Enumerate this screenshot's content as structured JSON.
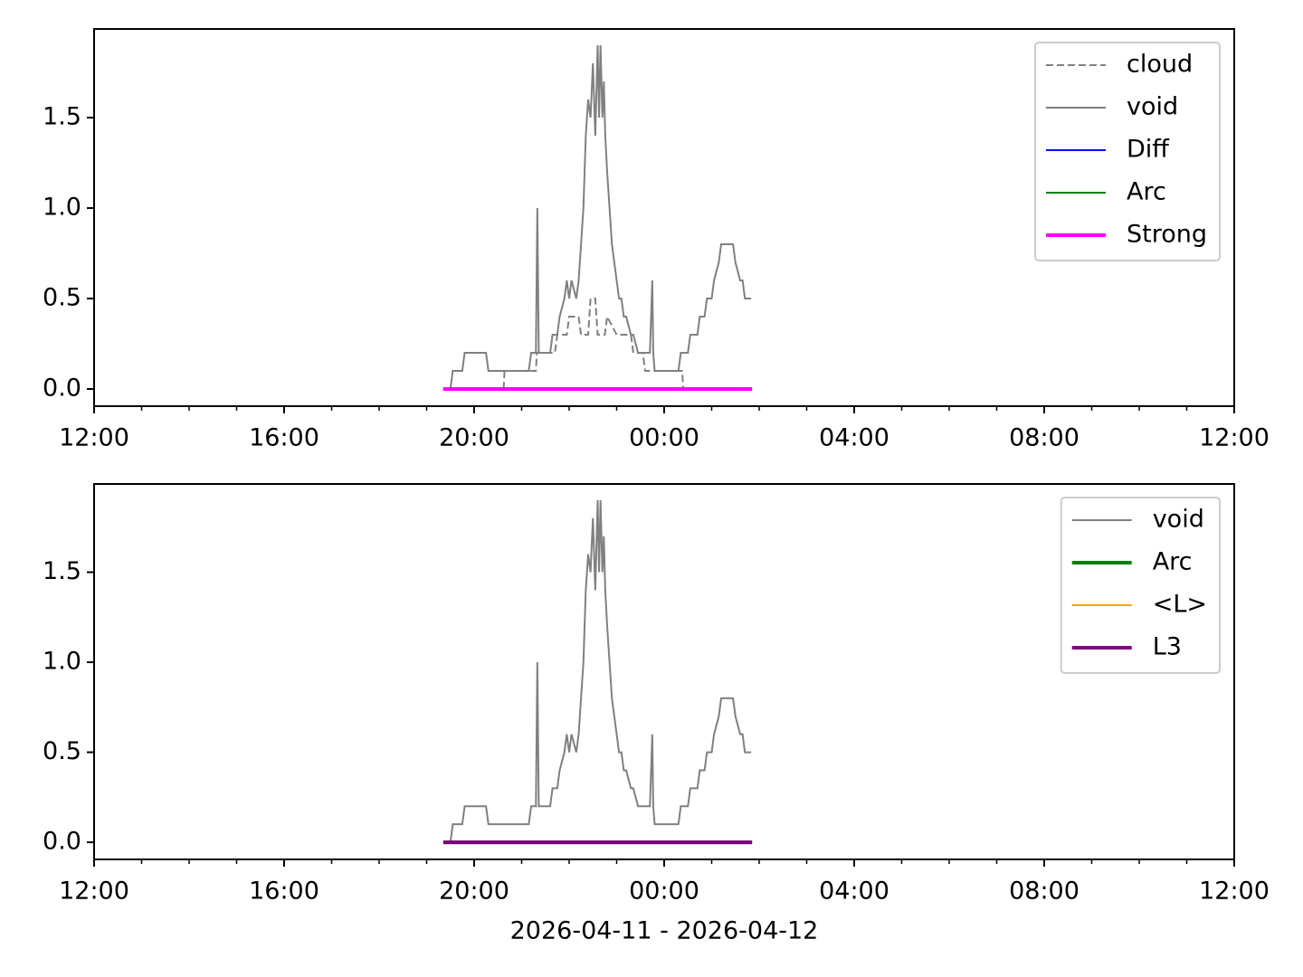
{
  "chart_data": [
    {
      "type": "line",
      "xlim": [
        0,
        24
      ],
      "ylim": [
        -0.095,
        1.99
      ],
      "xticks": [
        {
          "value": 0,
          "label": "12:00"
        },
        {
          "value": 4,
          "label": "16:00"
        },
        {
          "value": 8,
          "label": "20:00"
        },
        {
          "value": 12,
          "label": "00:00"
        },
        {
          "value": 16,
          "label": "04:00"
        },
        {
          "value": 20,
          "label": "08:00"
        },
        {
          "value": 24,
          "label": "12:00"
        }
      ],
      "xminor": [
        1,
        2,
        3,
        5,
        6,
        7,
        9,
        10,
        11,
        13,
        14,
        15,
        17,
        18,
        19,
        21,
        22,
        23
      ],
      "yticks": [
        {
          "value": 0,
          "label": "0.0"
        },
        0.5,
        {
          "value": 1,
          "label": "1.0"
        },
        1.5
      ],
      "legend": "upper right",
      "series": [
        {
          "name": "cloud",
          "color": "#808080",
          "dash": true,
          "width": 2,
          "x": [
            8.62,
            8.64,
            9.3,
            9.32,
            9.7,
            9.75,
            9.95,
            10.0,
            10.2,
            10.25,
            10.4,
            10.45,
            10.55,
            10.6,
            10.75,
            10.8,
            11.0,
            11.05,
            11.3,
            11.35,
            11.55,
            11.6,
            12.38,
            12.4
          ],
          "values": [
            0,
            0.1,
            0.1,
            0.2,
            0.2,
            0.3,
            0.3,
            0.4,
            0.4,
            0.3,
            0.3,
            0.5,
            0.5,
            0.3,
            0.3,
            0.4,
            0.3,
            0.3,
            0.3,
            0.2,
            0.2,
            0.1,
            0.1,
            0
          ]
        },
        {
          "name": "void",
          "color": "#808080",
          "width": 2,
          "x": [
            7.35,
            7.5,
            7.55,
            7.75,
            7.8,
            8.25,
            8.3,
            9.15,
            9.2,
            9.3,
            9.33,
            9.36,
            9.6,
            9.65,
            9.75,
            9.8,
            9.9,
            9.95,
            10.0,
            10.05,
            10.15,
            10.2,
            10.3,
            10.35,
            10.4,
            10.45,
            10.5,
            10.55,
            10.6,
            10.63,
            10.66,
            10.7,
            10.73,
            10.76,
            10.8,
            10.85,
            10.9,
            10.95,
            11.0,
            11.05,
            11.1,
            11.15,
            11.2,
            11.3,
            11.35,
            11.45,
            11.5,
            11.7,
            11.75,
            11.77,
            11.8,
            11.85,
            12.3,
            12.35,
            12.5,
            12.55,
            12.7,
            12.75,
            12.85,
            12.9,
            13.0,
            13.05,
            13.15,
            13.2,
            13.45,
            13.5,
            13.6,
            13.65,
            13.7,
            13.75,
            13.83
          ],
          "values": [
            0,
            0,
            0.1,
            0.1,
            0.2,
            0.2,
            0.1,
            0.1,
            0.2,
            0.2,
            1.0,
            0.2,
            0.2,
            0.3,
            0.3,
            0.4,
            0.5,
            0.6,
            0.5,
            0.6,
            0.5,
            0.6,
            1.0,
            1.4,
            1.6,
            1.5,
            1.8,
            1.4,
            1.9,
            1.5,
            1.9,
            1.5,
            1.7,
            1.4,
            1.2,
            1.0,
            0.8,
            0.7,
            0.6,
            0.5,
            0.5,
            0.4,
            0.4,
            0.3,
            0.3,
            0.2,
            0.2,
            0.2,
            0.6,
            0.2,
            0.1,
            0.1,
            0.1,
            0.2,
            0.2,
            0.3,
            0.3,
            0.4,
            0.4,
            0.5,
            0.5,
            0.6,
            0.7,
            0.8,
            0.8,
            0.7,
            0.6,
            0.6,
            0.5,
            0.5,
            0.5
          ]
        },
        {
          "name": "Diff",
          "color": "#0000ff",
          "width": 2,
          "x": [
            7.35,
            13.85
          ],
          "values": [
            0,
            0
          ]
        },
        {
          "name": "Arc",
          "color": "#008000",
          "width": 2,
          "x": [
            7.35,
            13.85
          ],
          "values": [
            0,
            0
          ]
        },
        {
          "name": "Strong",
          "color": "#ff00ff",
          "width": 4,
          "x": [
            7.35,
            13.85
          ],
          "values": [
            0,
            0
          ]
        }
      ]
    },
    {
      "type": "line",
      "xlim": [
        0,
        24
      ],
      "ylim": [
        -0.095,
        1.99
      ],
      "xlabel": "2026-04-11 - 2026-04-12",
      "xticks": [
        {
          "value": 0,
          "label": "12:00"
        },
        {
          "value": 4,
          "label": "16:00"
        },
        {
          "value": 8,
          "label": "20:00"
        },
        {
          "value": 12,
          "label": "00:00"
        },
        {
          "value": 16,
          "label": "04:00"
        },
        {
          "value": 20,
          "label": "08:00"
        },
        {
          "value": 24,
          "label": "12:00"
        }
      ],
      "xminor": [
        1,
        2,
        3,
        5,
        6,
        7,
        9,
        10,
        11,
        13,
        14,
        15,
        17,
        18,
        19,
        21,
        22,
        23
      ],
      "yticks": [
        {
          "value": 0,
          "label": "0.0"
        },
        0.5,
        {
          "value": 1,
          "label": "1.0"
        },
        1.5
      ],
      "legend": "upper right",
      "series": [
        {
          "name": "void",
          "color": "#808080",
          "width": 2,
          "x": [
            7.35,
            7.5,
            7.55,
            7.75,
            7.8,
            8.25,
            8.3,
            9.15,
            9.2,
            9.3,
            9.33,
            9.36,
            9.6,
            9.65,
            9.75,
            9.8,
            9.9,
            9.95,
            10.0,
            10.05,
            10.15,
            10.2,
            10.3,
            10.35,
            10.4,
            10.45,
            10.5,
            10.55,
            10.6,
            10.63,
            10.66,
            10.7,
            10.73,
            10.76,
            10.8,
            10.85,
            10.9,
            10.95,
            11.0,
            11.05,
            11.1,
            11.15,
            11.2,
            11.3,
            11.35,
            11.45,
            11.5,
            11.7,
            11.75,
            11.77,
            11.8,
            11.85,
            12.3,
            12.35,
            12.5,
            12.55,
            12.7,
            12.75,
            12.85,
            12.9,
            13.0,
            13.05,
            13.15,
            13.2,
            13.45,
            13.5,
            13.6,
            13.65,
            13.7,
            13.75,
            13.83
          ],
          "values": [
            0,
            0,
            0.1,
            0.1,
            0.2,
            0.2,
            0.1,
            0.1,
            0.2,
            0.2,
            1.0,
            0.2,
            0.2,
            0.3,
            0.3,
            0.4,
            0.5,
            0.6,
            0.5,
            0.6,
            0.5,
            0.6,
            1.0,
            1.4,
            1.6,
            1.5,
            1.8,
            1.4,
            1.9,
            1.5,
            1.9,
            1.5,
            1.7,
            1.4,
            1.2,
            1.0,
            0.8,
            0.7,
            0.6,
            0.5,
            0.5,
            0.4,
            0.4,
            0.3,
            0.3,
            0.2,
            0.2,
            0.2,
            0.6,
            0.2,
            0.1,
            0.1,
            0.1,
            0.2,
            0.2,
            0.3,
            0.3,
            0.4,
            0.4,
            0.5,
            0.5,
            0.6,
            0.7,
            0.8,
            0.8,
            0.7,
            0.6,
            0.6,
            0.5,
            0.5,
            0.5
          ]
        },
        {
          "name": "Arc",
          "color": "#008000",
          "width": 4,
          "x": [
            7.35,
            13.85
          ],
          "values": [
            0,
            0
          ]
        },
        {
          "name": "<L>",
          "color": "#ffa500",
          "width": 2,
          "x": [
            7.35,
            13.85
          ],
          "values": [
            0,
            0
          ]
        },
        {
          "name": "L3",
          "color": "#800080",
          "width": 4,
          "x": [
            7.35,
            13.85
          ],
          "values": [
            0,
            0
          ]
        }
      ]
    }
  ]
}
